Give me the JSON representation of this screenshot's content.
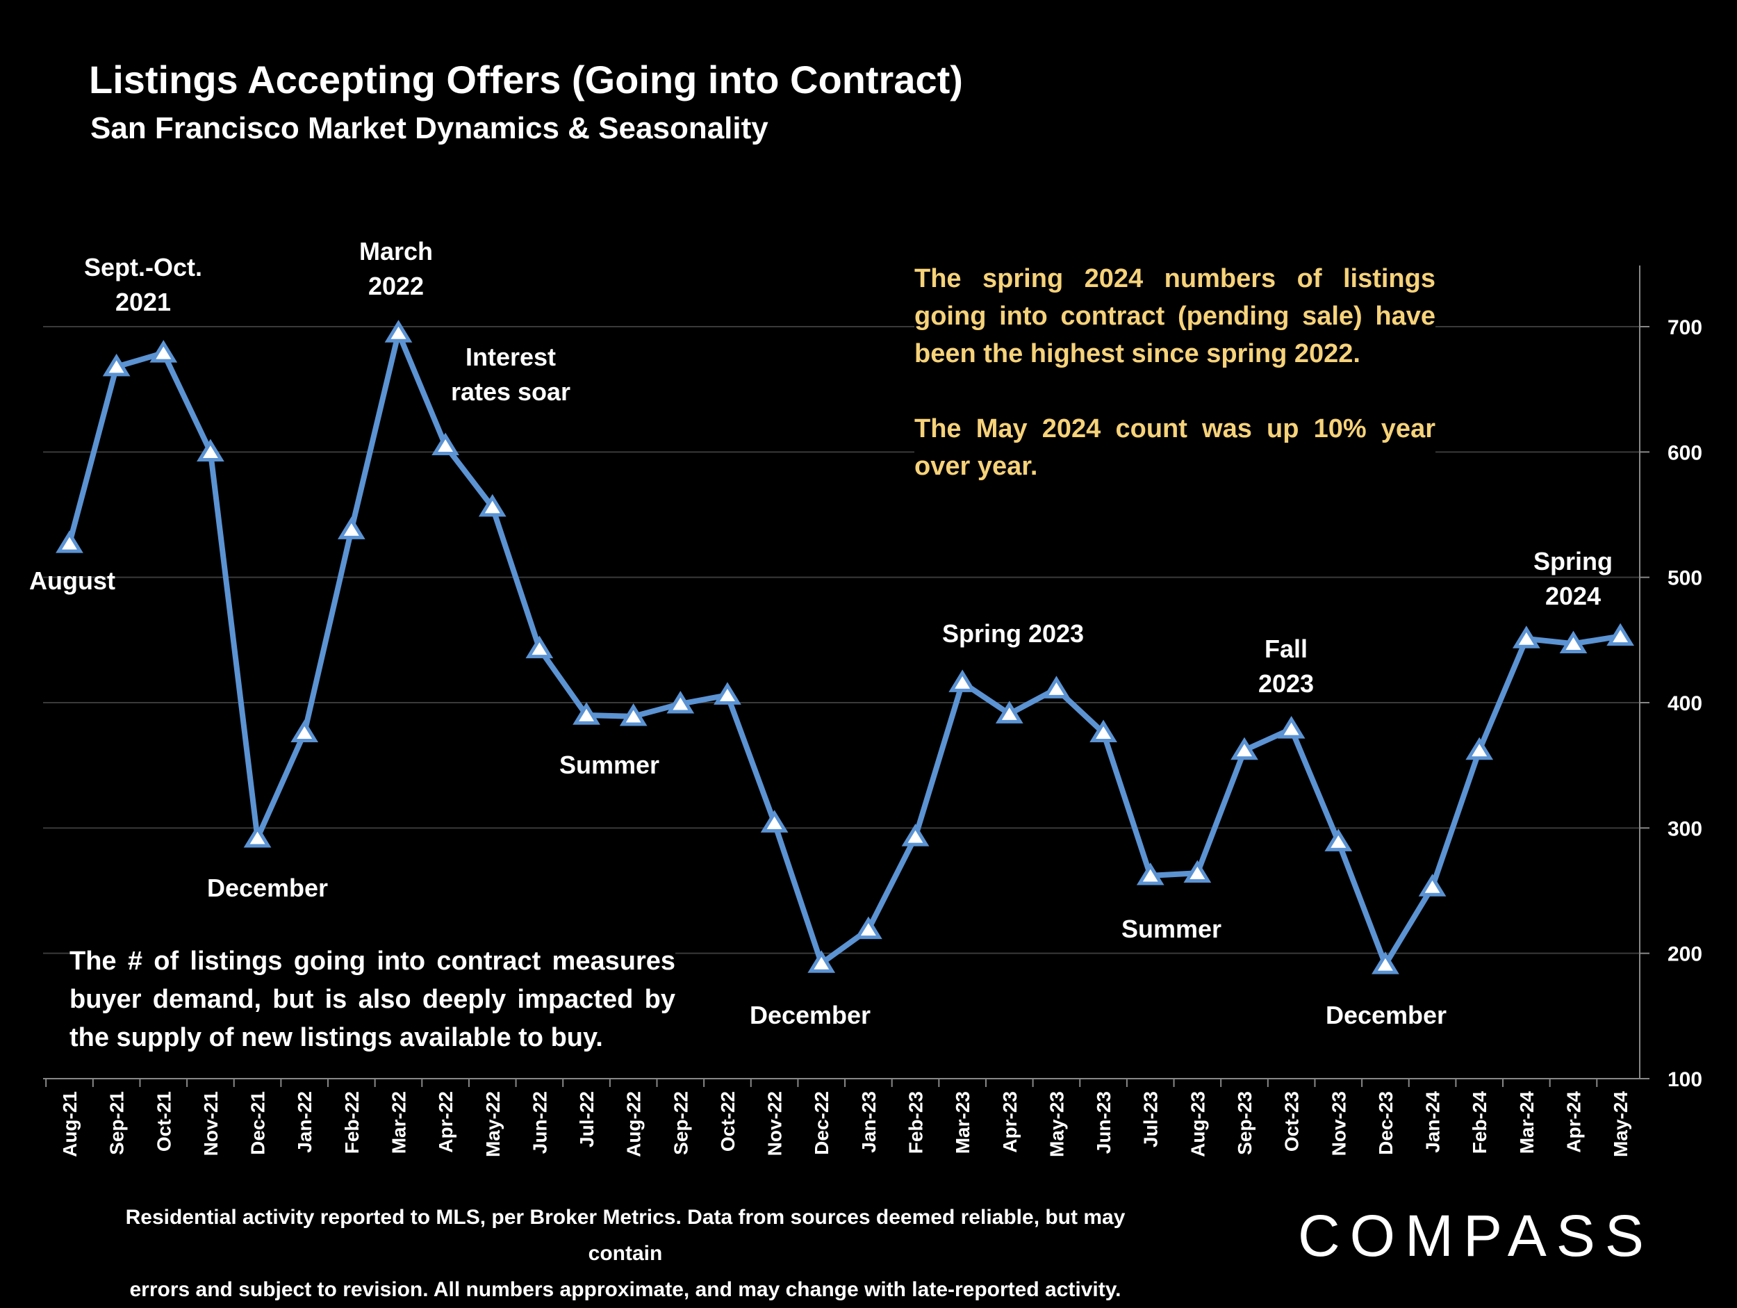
{
  "header": {
    "title": "Listings Accepting Offers (Going into Contract)",
    "subtitle": "San Francisco Market Dynamics & Seasonality"
  },
  "notes": {
    "top_paragraph_1": "The spring 2024 numbers of listings going into contract (pending sale) have been the highest since spring 2022.",
    "top_paragraph_2": "The May 2024 count was up 10% year over year.",
    "bottom": "The # of listings going into contract measures buyer demand, but is also deeply impacted by the supply of new listings available to buy."
  },
  "footer": {
    "line1": "Residential activity reported to MLS, per Broker Metrics. Data from sources deemed reliable, but may contain",
    "line2": "errors and subject to revision. All numbers approximate, and may change with late-reported activity.",
    "logo": "COMPASS"
  },
  "colors": {
    "background": "#000000",
    "line": "#5b93d3",
    "note_text": "#f6d27a",
    "grid": "#3a3a3a"
  },
  "chart_data": {
    "type": "line",
    "categories": [
      "Aug-21",
      "Sep-21",
      "Oct-21",
      "Nov-21",
      "Dec-21",
      "Jan-22",
      "Feb-22",
      "Mar-22",
      "Apr-22",
      "May-22",
      "Jun-22",
      "Jul-22",
      "Aug-22",
      "Sep-22",
      "Oct-22",
      "Nov-22",
      "Dec-22",
      "Jan-23",
      "Feb-23",
      "Mar-23",
      "Apr-23",
      "May-23",
      "Jun-23",
      "Jul-23",
      "Aug-23",
      "Sep-23",
      "Oct-23",
      "Nov-23",
      "Dec-23",
      "Jan-24",
      "Feb-24",
      "Mar-24",
      "Apr-24",
      "May-24"
    ],
    "values": [
      527,
      668,
      679,
      600,
      292,
      376,
      538,
      695,
      605,
      556,
      443,
      390,
      389,
      399,
      406,
      304,
      192,
      219,
      293,
      416,
      391,
      411,
      376,
      262,
      264,
      362,
      379,
      289,
      191,
      253,
      362,
      451,
      447,
      453
    ],
    "ylim": [
      100,
      700
    ],
    "yticks": [
      100,
      200,
      300,
      400,
      500,
      600,
      700
    ],
    "y_axis_side": "right",
    "grid": true,
    "marker": "triangle",
    "annotations": [
      {
        "text": "August",
        "index": 0
      },
      {
        "text": "Sept.-Oct.\n2021",
        "index": 1.5
      },
      {
        "text": "December",
        "index": 4
      },
      {
        "text": "March\n2022",
        "index": 7
      },
      {
        "text": "Interest\nrates soar",
        "index": 9.5
      },
      {
        "text": "Summer",
        "index": 12
      },
      {
        "text": "December",
        "index": 16
      },
      {
        "text": "Spring 2023",
        "index": 20
      },
      {
        "text": "Summer",
        "index": 23.5
      },
      {
        "text": "Fall\n2023",
        "index": 26
      },
      {
        "text": "December",
        "index": 28
      },
      {
        "text": "Spring\n2024",
        "index": 32
      }
    ]
  }
}
